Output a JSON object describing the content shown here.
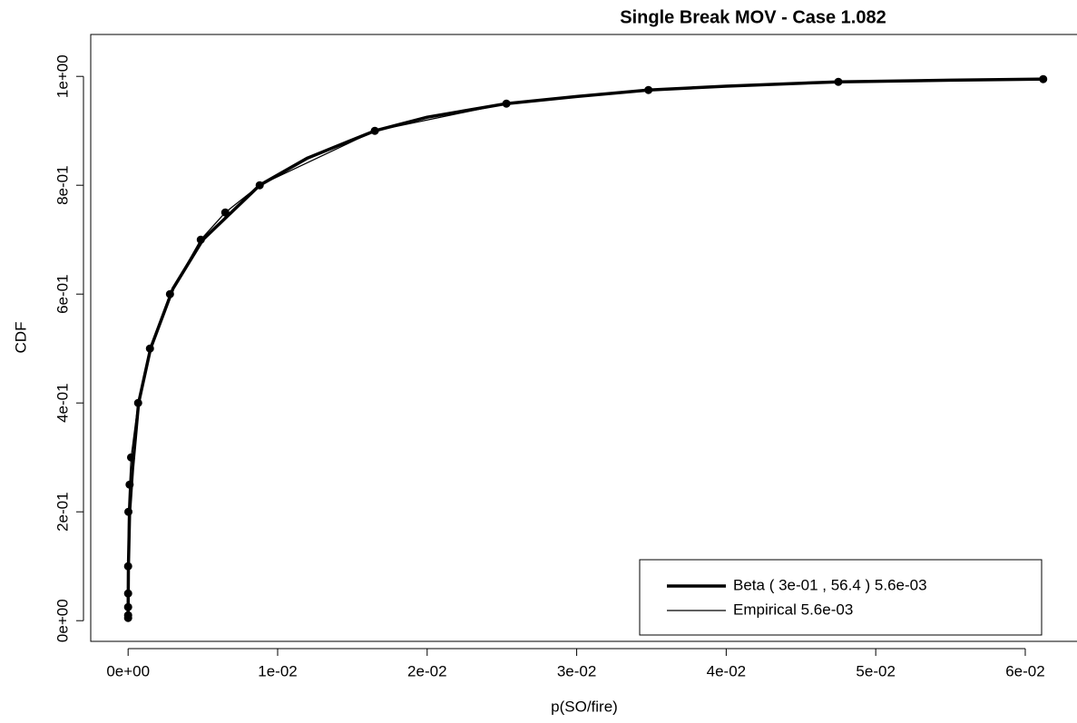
{
  "chart_data": {
    "type": "line",
    "title": "Single Break MOV - Case 1.082",
    "xlabel": "p(SO/fire)",
    "ylabel": "CDF",
    "xlim": [
      -0.0025,
      0.0634
    ],
    "ylim": [
      -0.038,
      1.077
    ],
    "xticks": [
      {
        "value": 0,
        "label": "0e+00"
      },
      {
        "value": 0.01,
        "label": "1e-02"
      },
      {
        "value": 0.02,
        "label": "2e-02"
      },
      {
        "value": 0.03,
        "label": "3e-02"
      },
      {
        "value": 0.04,
        "label": "4e-02"
      },
      {
        "value": 0.05,
        "label": "5e-02"
      },
      {
        "value": 0.06,
        "label": "6e-02"
      }
    ],
    "yticks": [
      {
        "value": 0,
        "label": "0e+00"
      },
      {
        "value": 0.2,
        "label": "2e-01"
      },
      {
        "value": 0.4,
        "label": "4e-01"
      },
      {
        "value": 0.6,
        "label": "6e-01"
      },
      {
        "value": 0.8,
        "label": "8e-01"
      },
      {
        "value": 1,
        "label": "1e+00"
      }
    ],
    "legend": "bottom-right",
    "series": [
      {
        "name": "Beta ( 3e-01 , 56.4 ) 5.6e-03",
        "color": "#000000",
        "width": 3.5,
        "markers": false,
        "x": [
          0,
          2e-05,
          0.0001,
          0.0003,
          0.0007,
          0.0015,
          0.003,
          0.005,
          0.0088,
          0.012,
          0.0165,
          0.02,
          0.0253,
          0.03,
          0.0348,
          0.04,
          0.0475,
          0.055,
          0.0612
        ],
        "values": [
          0.01,
          0.1,
          0.2,
          0.28,
          0.4,
          0.5,
          0.61,
          0.7,
          0.8,
          0.85,
          0.9,
          0.925,
          0.95,
          0.963,
          0.975,
          0.982,
          0.99,
          0.993,
          0.995
        ]
      },
      {
        "name": "Empirical 5.6e-03",
        "color": "#000000",
        "width": 1.3,
        "markers": true,
        "x": [
          0,
          0,
          0,
          0,
          0,
          2e-05,
          0.0001,
          0.0002,
          0.00067,
          0.00146,
          0.0028,
          0.00486,
          0.0065,
          0.0088,
          0.0165,
          0.0253,
          0.0348,
          0.0475,
          0.0612
        ],
        "values": [
          0.005,
          0.01,
          0.025,
          0.05,
          0.1,
          0.2,
          0.25,
          0.3,
          0.4,
          0.5,
          0.6,
          0.7,
          0.75,
          0.8,
          0.9,
          0.95,
          0.975,
          0.99,
          0.995
        ]
      }
    ]
  }
}
